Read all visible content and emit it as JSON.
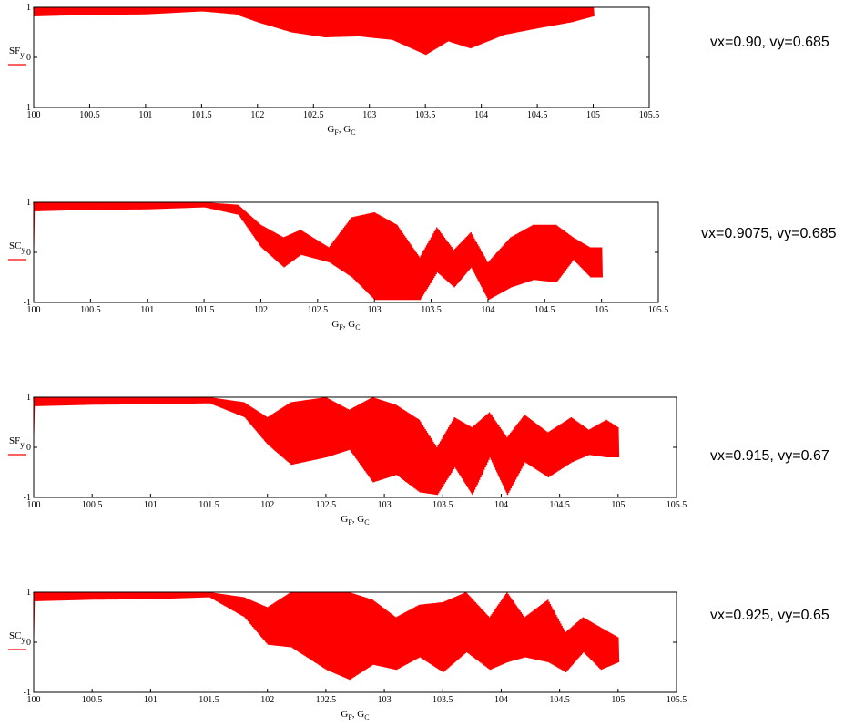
{
  "chart_data": [
    {
      "type": "line",
      "series": [
        {
          "name": "SF_y",
          "color": "#ff0000"
        }
      ],
      "ylabel": "SF_y",
      "xlabel": "G_F, G_C",
      "xlim": [
        100,
        105.5
      ],
      "ylim": [
        -1,
        1
      ],
      "xticks": [
        "100",
        "100.5",
        "101",
        "101.5",
        "102",
        "102.5",
        "103",
        "103.5",
        "104",
        "104.5",
        "105",
        "105.5"
      ],
      "yticks": [
        "1",
        "0",
        "-1"
      ],
      "caption": "vx=0.90, vy=0.685",
      "envelope": {
        "x": [
          100,
          100.5,
          101,
          101.5,
          101.8,
          102,
          102.3,
          102.6,
          102.9,
          103.2,
          103.5,
          103.7,
          103.9,
          104.2,
          104.5,
          104.8,
          105
        ],
        "upper": [
          1,
          1,
          1,
          1,
          1,
          1,
          1,
          1,
          1,
          1,
          1,
          1,
          1,
          1,
          1,
          1,
          1
        ],
        "lower": [
          0.82,
          0.85,
          0.86,
          0.92,
          0.86,
          0.7,
          0.5,
          0.4,
          0.42,
          0.35,
          0.05,
          0.32,
          0.18,
          0.45,
          0.58,
          0.7,
          0.82
        ]
      }
    },
    {
      "type": "line",
      "series": [
        {
          "name": "SC_y",
          "color": "#ff0000"
        }
      ],
      "ylabel": "SC_y",
      "xlabel": "G_F, G_C",
      "xlim": [
        100,
        105.5
      ],
      "ylim": [
        -1,
        1
      ],
      "xticks": [
        "100",
        "100.5",
        "101",
        "101.5",
        "102",
        "102.5",
        "103",
        "103.5",
        "104",
        "104.5",
        "105",
        "105.5"
      ],
      "yticks": [
        "1",
        "0",
        "-1"
      ],
      "caption": "vx=0.9075, vy=0.685",
      "envelope": {
        "x": [
          100,
          100.5,
          101,
          101.5,
          101.8,
          102,
          102.2,
          102.35,
          102.6,
          102.8,
          103,
          103.2,
          103.4,
          103.55,
          103.7,
          103.85,
          104,
          104.2,
          104.4,
          104.6,
          104.75,
          104.9,
          105
        ],
        "upper": [
          1,
          1,
          1,
          1,
          0.95,
          0.55,
          0.3,
          0.45,
          0.1,
          0.7,
          0.8,
          0.55,
          -0.1,
          0.5,
          0.05,
          0.4,
          -0.2,
          0.3,
          0.55,
          0.55,
          0.3,
          0.1,
          0.1
        ],
        "lower": [
          0.82,
          0.85,
          0.86,
          0.9,
          0.75,
          0.1,
          -0.3,
          -0.05,
          -0.2,
          -0.5,
          -0.95,
          -0.95,
          -0.95,
          -0.4,
          -0.7,
          -0.3,
          -0.95,
          -0.7,
          -0.55,
          -0.6,
          -0.15,
          -0.5,
          -0.5
        ]
      }
    },
    {
      "type": "line",
      "series": [
        {
          "name": "SF_y",
          "color": "#ff0000"
        }
      ],
      "ylabel": "SF_y",
      "xlabel": "G_F, G_C",
      "xlim": [
        100,
        105.5
      ],
      "ylim": [
        -1,
        1
      ],
      "xticks": [
        "100",
        "100.5",
        "101",
        "101.5",
        "102",
        "102.5",
        "103",
        "103.5",
        "104",
        "104.5",
        "105",
        "105.5"
      ],
      "yticks": [
        "1",
        "0",
        "-1"
      ],
      "caption": "vx=0.915, vy=0.67",
      "envelope": {
        "x": [
          100,
          100.5,
          101,
          101.5,
          101.8,
          102,
          102.2,
          102.5,
          102.7,
          102.9,
          103.1,
          103.3,
          103.45,
          103.6,
          103.75,
          103.9,
          104.05,
          104.2,
          104.4,
          104.6,
          104.75,
          104.9,
          105
        ],
        "upper": [
          1,
          1,
          1,
          1,
          0.9,
          0.6,
          0.9,
          1,
          0.75,
          1,
          0.85,
          0.55,
          0,
          0.6,
          0.4,
          0.7,
          0.2,
          0.65,
          0.3,
          0.6,
          0.35,
          0.55,
          0.4
        ],
        "lower": [
          0.82,
          0.85,
          0.86,
          0.88,
          0.6,
          0.05,
          -0.35,
          -0.2,
          -0.05,
          -0.7,
          -0.55,
          -0.9,
          -0.95,
          -0.4,
          -0.95,
          -0.2,
          -0.95,
          -0.3,
          -0.6,
          -0.3,
          -0.15,
          -0.2,
          -0.2
        ]
      }
    },
    {
      "type": "line",
      "series": [
        {
          "name": "SC_y",
          "color": "#ff0000"
        }
      ],
      "ylabel": "SC_y",
      "xlabel": "G_F, G_C",
      "xlim": [
        100,
        105.5
      ],
      "ylim": [
        -1,
        1
      ],
      "xticks": [
        "100",
        "100.5",
        "101",
        "101.5",
        "102",
        "102.5",
        "103",
        "103.5",
        "104",
        "104.5",
        "105",
        "105.5"
      ],
      "yticks": [
        "1",
        "0",
        "-1"
      ],
      "caption": "vx=0.925, vy=0.65",
      "envelope": {
        "x": [
          100,
          100.5,
          101,
          101.5,
          101.8,
          102,
          102.2,
          102.5,
          102.7,
          102.9,
          103.1,
          103.3,
          103.5,
          103.7,
          103.9,
          104.05,
          104.2,
          104.4,
          104.55,
          104.7,
          104.85,
          105
        ],
        "upper": [
          1,
          1,
          1,
          1,
          0.9,
          0.7,
          1,
          1,
          1,
          0.85,
          0.5,
          0.75,
          0.8,
          1,
          0.5,
          1,
          0.5,
          0.85,
          0.2,
          0.5,
          0.3,
          0.1
        ],
        "lower": [
          0.82,
          0.85,
          0.86,
          0.9,
          0.5,
          -0.05,
          -0.1,
          -0.55,
          -0.75,
          -0.45,
          -0.55,
          -0.3,
          -0.6,
          -0.2,
          -0.55,
          -0.4,
          -0.3,
          -0.4,
          -0.6,
          -0.2,
          -0.55,
          -0.4
        ]
      }
    }
  ]
}
